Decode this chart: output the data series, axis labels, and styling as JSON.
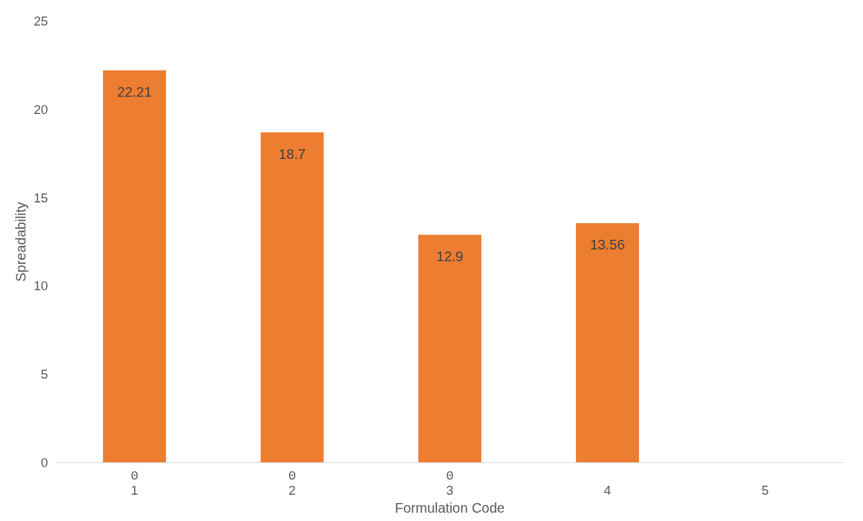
{
  "chart_data": {
    "type": "bar",
    "xlabel": "Formulation Code",
    "ylabel": "Spreadability",
    "categories": [
      "1",
      "2",
      "3",
      "4",
      "5"
    ],
    "series": [
      {
        "color": "#ed7d31",
        "values": [
          22.21,
          18.7,
          12.9,
          13.56,
          null
        ]
      },
      {
        "color": "#ed7d31",
        "values": [
          0,
          0,
          0,
          null,
          null
        ]
      }
    ],
    "ylim": [
      0,
      25
    ],
    "yticks": [
      0,
      5,
      10,
      15,
      20,
      25
    ],
    "data_labels": true,
    "grid": false
  }
}
